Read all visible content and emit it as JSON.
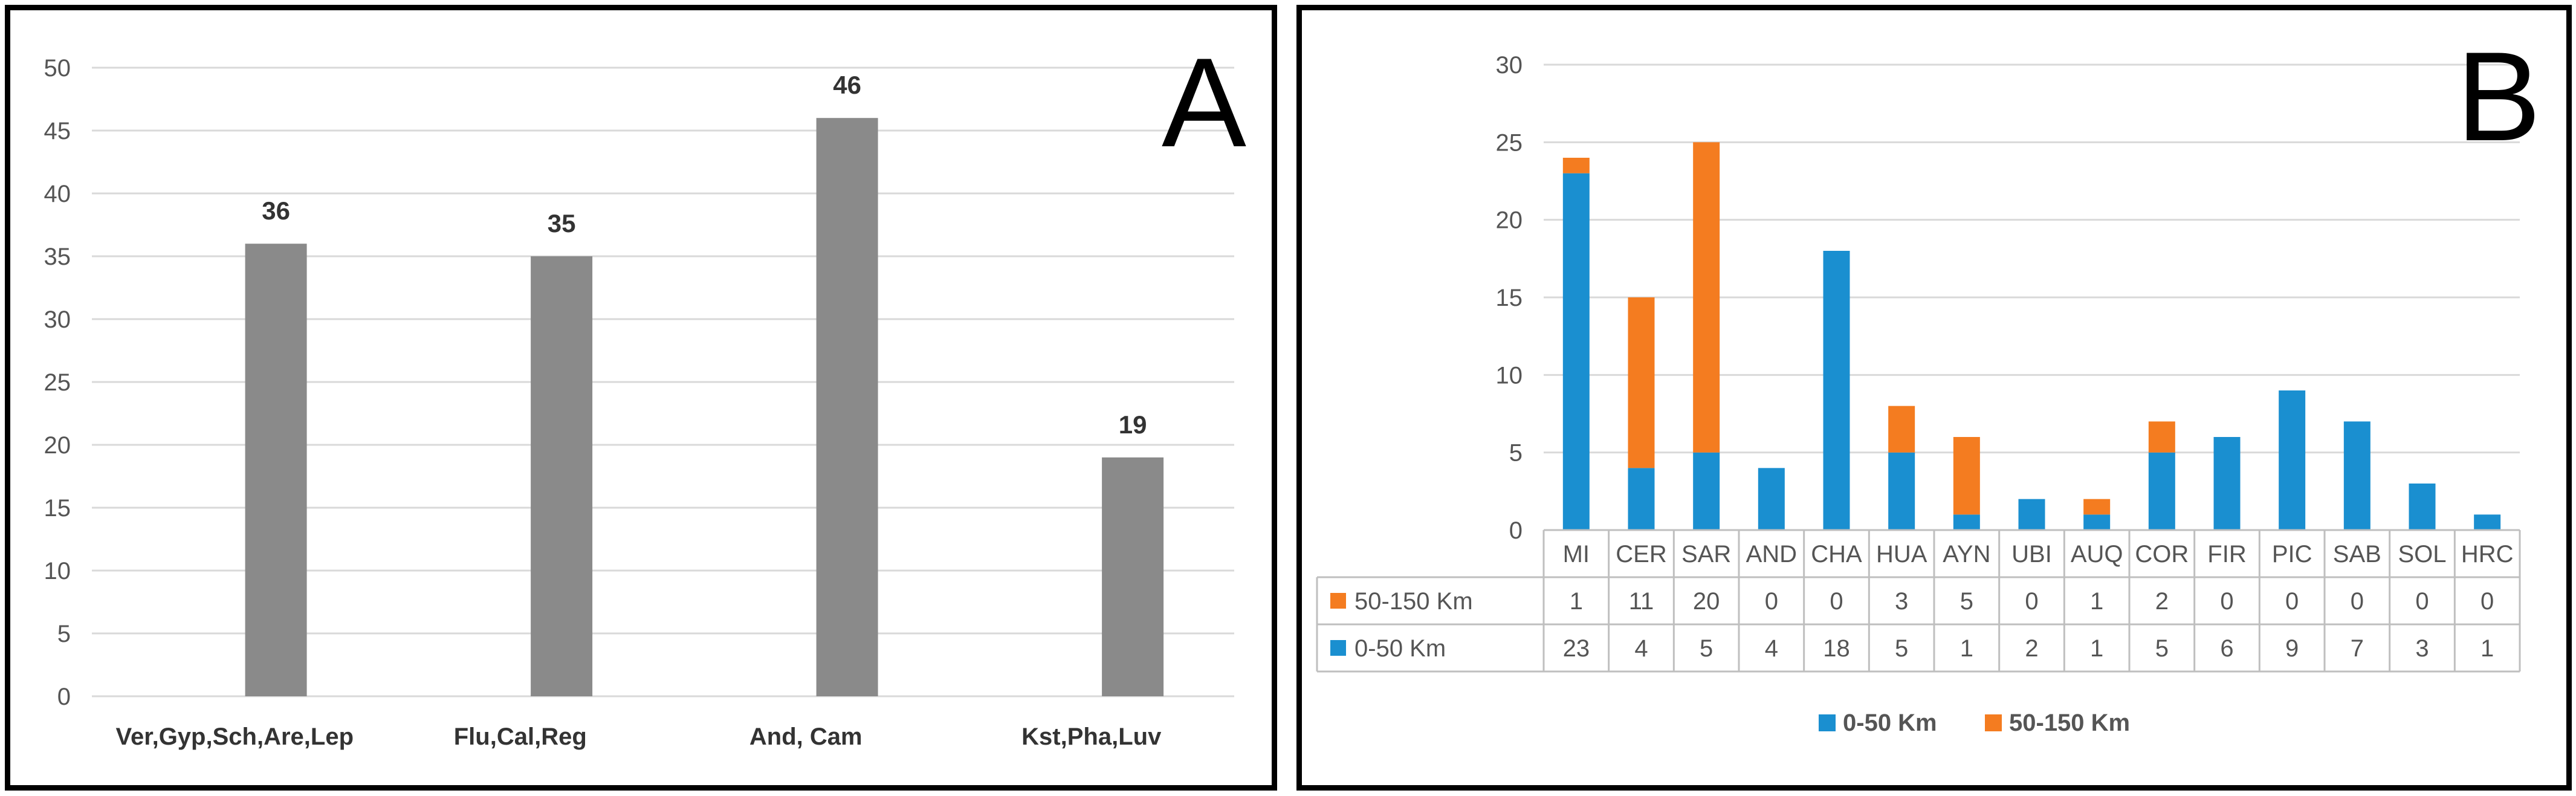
{
  "chart_data": [
    {
      "panel": "A",
      "type": "bar",
      "categories": [
        "Ver,Gyp,Sch,Are,Lep",
        "Flu,Cal,Reg",
        "And, Cam",
        "Kst,Pha,Luv"
      ],
      "values": [
        36,
        35,
        46,
        19
      ],
      "data_labels": [
        "36",
        "35",
        "46",
        "19"
      ],
      "ylim": [
        0,
        50
      ],
      "yticks": [
        "0",
        "5",
        "10",
        "15",
        "20",
        "25",
        "30",
        "35",
        "40",
        "45",
        "50"
      ],
      "grid": true,
      "bar_color": "#8a8a8a"
    },
    {
      "panel": "B",
      "type": "bar",
      "stacked": true,
      "categories": [
        "MI",
        "CER",
        "SAR",
        "AND",
        "CHA",
        "HUA",
        "AYN",
        "UBI",
        "AUQ",
        "COR",
        "FIR",
        "PIC",
        "SAB",
        "SOL",
        "HRC"
      ],
      "series": [
        {
          "name": "0-50 Km",
          "color": "#1a8fd0",
          "values": [
            23,
            4,
            5,
            4,
            18,
            5,
            1,
            2,
            1,
            5,
            6,
            9,
            7,
            3,
            1
          ]
        },
        {
          "name": "50-150 Km",
          "color": "#f47c20",
          "values": [
            1,
            11,
            20,
            0,
            0,
            3,
            5,
            0,
            1,
            2,
            0,
            0,
            0,
            0,
            0
          ]
        }
      ],
      "table_rows": [
        {
          "name": "50-150 Km",
          "color": "#f47c20",
          "cells": [
            "1",
            "11",
            "20",
            "0",
            "0",
            "3",
            "5",
            "0",
            "1",
            "2",
            "0",
            "0",
            "0",
            "0",
            "0"
          ]
        },
        {
          "name": "0-50 Km",
          "color": "#1a8fd0",
          "cells": [
            "23",
            "4",
            "5",
            "4",
            "18",
            "5",
            "1",
            "2",
            "1",
            "5",
            "6",
            "9",
            "7",
            "3",
            "1"
          ]
        }
      ],
      "ylim": [
        0,
        30
      ],
      "yticks": [
        "0",
        "5",
        "10",
        "15",
        "20",
        "25",
        "30"
      ],
      "grid": true,
      "legend": {
        "position": "bottom",
        "items": [
          {
            "name": "0-50 Km",
            "color": "#1a8fd0"
          },
          {
            "name": "50-150 Km",
            "color": "#f47c20"
          }
        ]
      }
    }
  ],
  "panel_labels": {
    "a": "A",
    "b": "B"
  }
}
